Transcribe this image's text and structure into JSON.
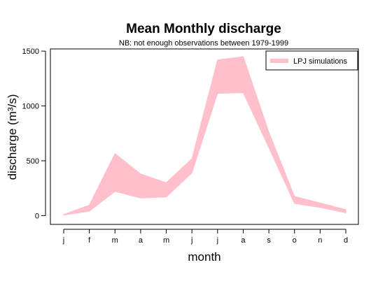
{
  "chart_data": {
    "type": "area",
    "title": "Mean Monthly discharge",
    "subtitle": "NB: not enough observations between 1979-1999",
    "xlabel": "month",
    "ylabel": "discharge (m³/s)",
    "categories": [
      "j",
      "f",
      "m",
      "a",
      "m",
      "j",
      "j",
      "a",
      "s",
      "o",
      "n",
      "d"
    ],
    "ylim": [
      -80,
      1520
    ],
    "yticks": [
      0,
      500,
      1000,
      1500
    ],
    "grid": false,
    "legend_position": "top-right",
    "series": [
      {
        "name": "LPJ simulations",
        "color": "#FFC0CB",
        "upper": [
          10,
          95,
          565,
          380,
          300,
          520,
          1420,
          1450,
          760,
          175,
          115,
          55
        ],
        "lower": [
          5,
          40,
          220,
          160,
          170,
          390,
          1115,
          1120,
          620,
          110,
          75,
          25
        ]
      }
    ]
  }
}
